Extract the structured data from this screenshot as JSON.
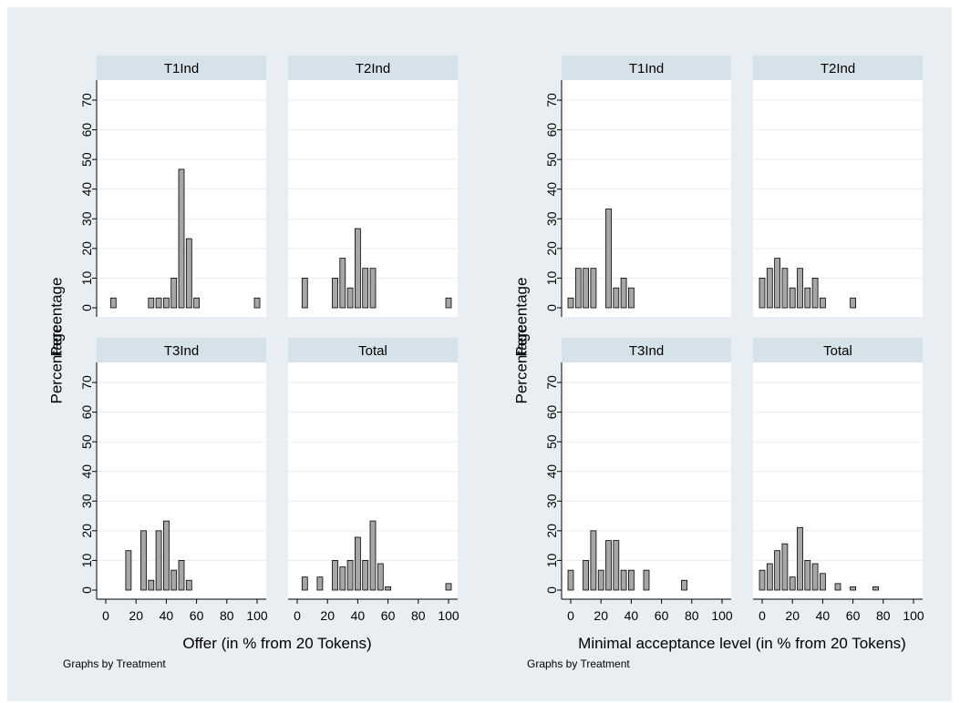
{
  "chart_data": [
    {
      "type": "bar",
      "subtype": "histogram-by-group",
      "xlabel": "Offer (in % from 20 Tokens)",
      "ylabel": "Percentage",
      "note": "Graphs by Treatment",
      "xlim": [
        0,
        100
      ],
      "ylim": [
        0,
        70
      ],
      "xticks": [
        "0",
        "20",
        "40",
        "60",
        "80",
        "100"
      ],
      "yticks": [
        "0",
        "10",
        "20",
        "30",
        "40",
        "50",
        "60",
        "70"
      ],
      "bin_width": 3.6,
      "panels": [
        {
          "title": "T1Ind",
          "bins": [
            {
              "x": 5,
              "y": 3.3
            },
            {
              "x": 30,
              "y": 3.3
            },
            {
              "x": 35,
              "y": 3.3
            },
            {
              "x": 40,
              "y": 3.3
            },
            {
              "x": 45,
              "y": 10
            },
            {
              "x": 50,
              "y": 46.7
            },
            {
              "x": 55,
              "y": 23.3
            },
            {
              "x": 60,
              "y": 3.3
            },
            {
              "x": 100,
              "y": 3.3
            }
          ]
        },
        {
          "title": "T2Ind",
          "bins": [
            {
              "x": 5,
              "y": 10
            },
            {
              "x": 25,
              "y": 10
            },
            {
              "x": 30,
              "y": 16.7
            },
            {
              "x": 35,
              "y": 6.7
            },
            {
              "x": 40,
              "y": 26.7
            },
            {
              "x": 45,
              "y": 13.3
            },
            {
              "x": 50,
              "y": 13.3
            },
            {
              "x": 100,
              "y": 3.3
            }
          ]
        },
        {
          "title": "T3Ind",
          "bins": [
            {
              "x": 15,
              "y": 13.3
            },
            {
              "x": 25,
              "y": 20
            },
            {
              "x": 30,
              "y": 3.3
            },
            {
              "x": 35,
              "y": 20
            },
            {
              "x": 40,
              "y": 23.3
            },
            {
              "x": 45,
              "y": 6.7
            },
            {
              "x": 50,
              "y": 10
            },
            {
              "x": 55,
              "y": 3.3
            }
          ]
        },
        {
          "title": "Total",
          "bins": [
            {
              "x": 5,
              "y": 4.4
            },
            {
              "x": 15,
              "y": 4.4
            },
            {
              "x": 25,
              "y": 10
            },
            {
              "x": 30,
              "y": 7.8
            },
            {
              "x": 35,
              "y": 10
            },
            {
              "x": 40,
              "y": 17.8
            },
            {
              "x": 45,
              "y": 10
            },
            {
              "x": 50,
              "y": 23.3
            },
            {
              "x": 55,
              "y": 8.9
            },
            {
              "x": 60,
              "y": 1.1
            },
            {
              "x": 100,
              "y": 2.2
            }
          ]
        }
      ]
    },
    {
      "type": "bar",
      "subtype": "histogram-by-group",
      "xlabel": "Minimal acceptance level (in % from 20 Tokens)",
      "ylabel": "Percentage",
      "note": "Graphs by Treatment",
      "xlim": [
        0,
        100
      ],
      "ylim": [
        0,
        70
      ],
      "xticks": [
        "0",
        "20",
        "40",
        "60",
        "80",
        "100"
      ],
      "yticks": [
        "0",
        "10",
        "20",
        "30",
        "40",
        "50",
        "60",
        "70"
      ],
      "bin_width": 3.6,
      "panels": [
        {
          "title": "T1Ind",
          "bins": [
            {
              "x": 0,
              "y": 3.3
            },
            {
              "x": 5,
              "y": 13.3
            },
            {
              "x": 10,
              "y": 13.3
            },
            {
              "x": 15,
              "y": 13.3
            },
            {
              "x": 25,
              "y": 33.3
            },
            {
              "x": 30,
              "y": 6.7
            },
            {
              "x": 35,
              "y": 10
            },
            {
              "x": 40,
              "y": 6.7
            }
          ]
        },
        {
          "title": "T2Ind",
          "bins": [
            {
              "x": 0,
              "y": 10
            },
            {
              "x": 5,
              "y": 13.3
            },
            {
              "x": 10,
              "y": 16.7
            },
            {
              "x": 15,
              "y": 13.3
            },
            {
              "x": 20,
              "y": 6.7
            },
            {
              "x": 25,
              "y": 13.3
            },
            {
              "x": 30,
              "y": 6.7
            },
            {
              "x": 35,
              "y": 10
            },
            {
              "x": 40,
              "y": 3.3
            },
            {
              "x": 60,
              "y": 3.3
            }
          ]
        },
        {
          "title": "T3Ind",
          "bins": [
            {
              "x": 0,
              "y": 6.7
            },
            {
              "x": 10,
              "y": 10
            },
            {
              "x": 15,
              "y": 20
            },
            {
              "x": 20,
              "y": 6.7
            },
            {
              "x": 25,
              "y": 16.7
            },
            {
              "x": 30,
              "y": 16.7
            },
            {
              "x": 35,
              "y": 6.7
            },
            {
              "x": 40,
              "y": 6.7
            },
            {
              "x": 50,
              "y": 6.7
            },
            {
              "x": 75,
              "y": 3.3
            }
          ]
        },
        {
          "title": "Total",
          "bins": [
            {
              "x": 0,
              "y": 6.7
            },
            {
              "x": 5,
              "y": 8.9
            },
            {
              "x": 10,
              "y": 13.3
            },
            {
              "x": 15,
              "y": 15.6
            },
            {
              "x": 20,
              "y": 4.4
            },
            {
              "x": 25,
              "y": 21.1
            },
            {
              "x": 30,
              "y": 10
            },
            {
              "x": 35,
              "y": 8.9
            },
            {
              "x": 40,
              "y": 5.6
            },
            {
              "x": 50,
              "y": 2.2
            },
            {
              "x": 60,
              "y": 1.1
            },
            {
              "x": 75,
              "y": 1.1
            }
          ]
        }
      ]
    }
  ],
  "colors": {
    "background": "#e8eef1",
    "plot": "#ffffff",
    "strip": "#d6e2e9",
    "bar_fill": "#a6a6a6",
    "bar_stroke": "#000000",
    "grid": "#e9eef1",
    "text": "#000000"
  }
}
